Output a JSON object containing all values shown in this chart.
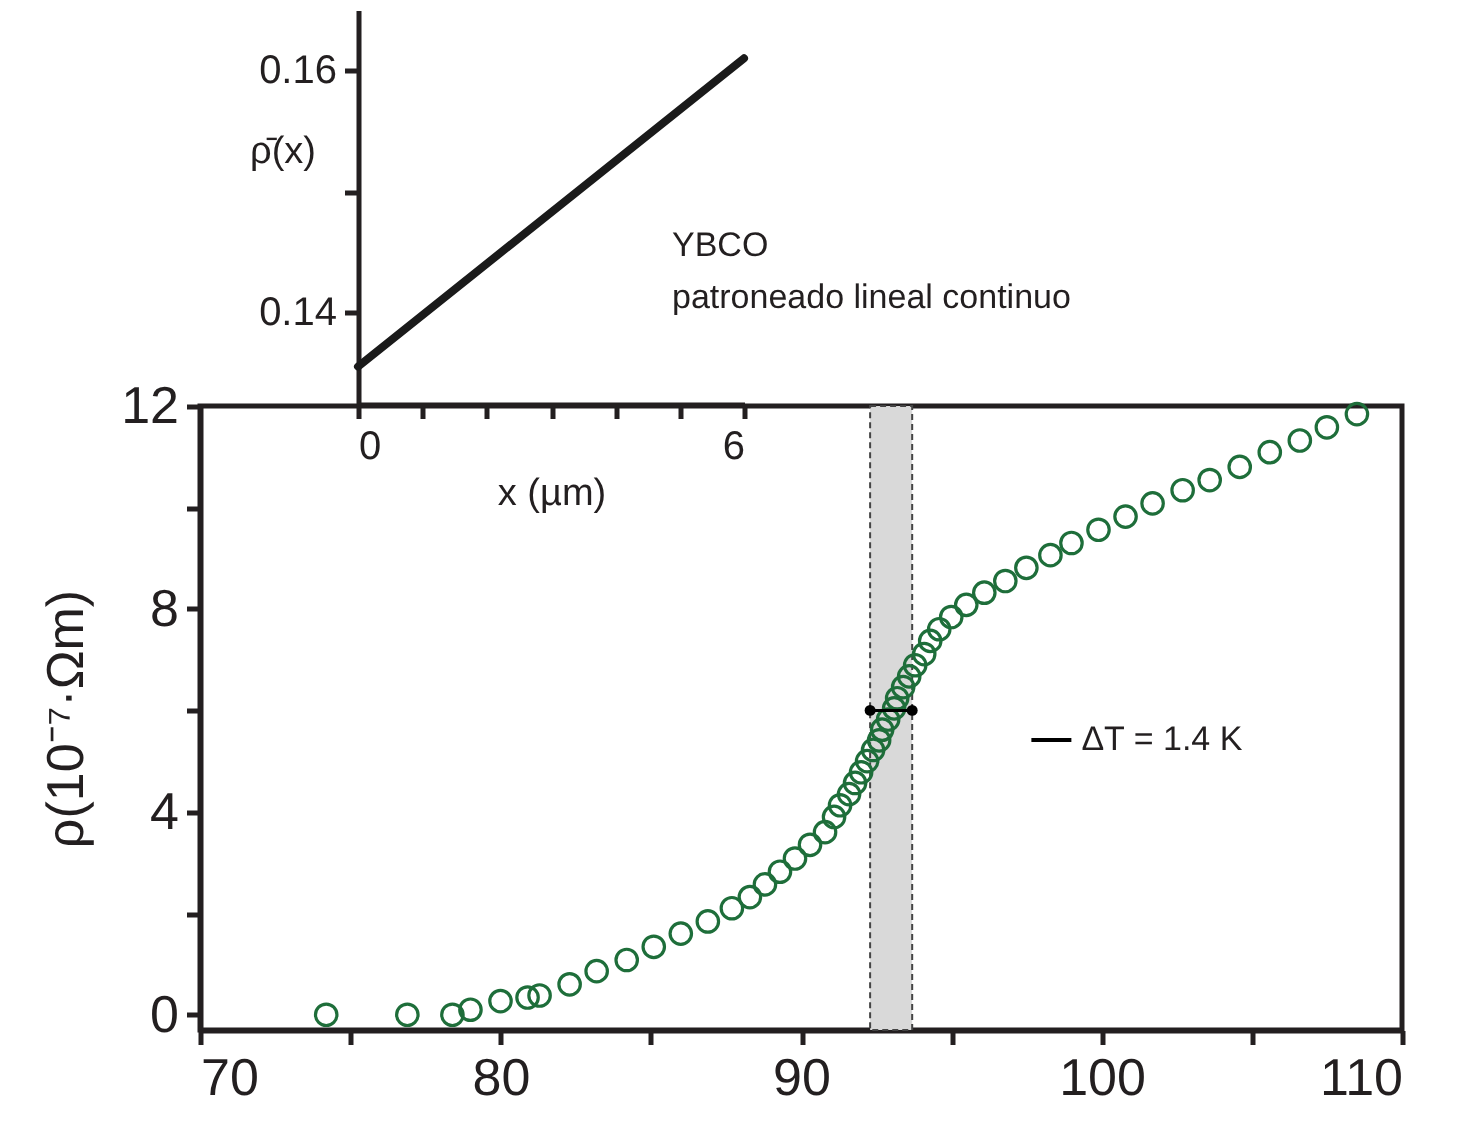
{
  "chart_data": [
    {
      "type": "scatter",
      "ylabel": "ρ(10⁻⁷·Ωm)",
      "xlim": [
        70,
        110
      ],
      "ylim": [
        -0.3,
        12
      ],
      "xticks": [
        70,
        {
          "value": 75,
          "label": null
        },
        80,
        {
          "value": 85,
          "label": null
        },
        90,
        {
          "value": 95,
          "label": null
        },
        100,
        {
          "value": 105,
          "label": null
        },
        110
      ],
      "yticks": [
        0,
        {
          "value": 2,
          "label": null
        },
        4,
        {
          "value": 6,
          "label": null
        },
        8,
        {
          "value": 10,
          "label": null
        },
        12
      ],
      "marker": "circle",
      "legend": "right",
      "grid": false,
      "bands": [
        {
          "axis": "x",
          "from": 92.3,
          "to": 93.7,
          "color": "#d9d9d9"
        }
      ],
      "series": [
        {
          "color": "#1e6e3a",
          "x": [
            74.2,
            76.9,
            78.4,
            79.0,
            80.0,
            80.9,
            81.3,
            82.3,
            83.2,
            84.2,
            85.1,
            86.0,
            86.9,
            87.7,
            88.3,
            88.8,
            89.3,
            89.8,
            90.3,
            90.8,
            91.1,
            91.3,
            91.6,
            91.8,
            92.0,
            92.2,
            92.4,
            92.6,
            92.7,
            92.9,
            93.1,
            93.2,
            93.4,
            93.6,
            93.8,
            94.1,
            94.3,
            94.6,
            95.0,
            95.5,
            96.1,
            96.8,
            97.5,
            98.3,
            99.0,
            99.9,
            100.8,
            101.7,
            102.7,
            103.6,
            104.6,
            105.6,
            106.6,
            107.5,
            108.5
          ],
          "values": [
            0.0,
            0.0,
            0.0,
            0.1,
            0.27,
            0.34,
            0.38,
            0.6,
            0.86,
            1.08,
            1.34,
            1.6,
            1.84,
            2.1,
            2.32,
            2.57,
            2.82,
            3.08,
            3.35,
            3.6,
            3.9,
            4.13,
            4.35,
            4.57,
            4.78,
            5.0,
            5.22,
            5.41,
            5.62,
            5.82,
            6.04,
            6.24,
            6.46,
            6.67,
            6.89,
            7.11,
            7.37,
            7.6,
            7.84,
            8.08,
            8.32,
            8.55,
            8.81,
            9.06,
            9.3,
            9.56,
            9.82,
            10.08,
            10.34,
            10.54,
            10.8,
            11.09,
            11.32,
            11.58,
            11.84
          ]
        },
        {
          "name": "ΔT = 1.4 K",
          "type": "line",
          "color": "#000000",
          "x": [
            92.3,
            93.7
          ],
          "values": [
            6,
            6
          ]
        }
      ]
    },
    {
      "type": "line",
      "xlabel": "x (µm)",
      "ylabel": "ρ̄(x)",
      "xlim": [
        0,
        6
      ],
      "ylim": [
        0.1324,
        0.165
      ],
      "xticks": [
        0,
        {
          "value": 1,
          "label": null
        },
        {
          "value": 2,
          "label": null
        },
        {
          "value": 3,
          "label": null
        },
        {
          "value": 4,
          "label": null
        },
        {
          "value": 5,
          "label": null
        },
        6
      ],
      "yticks": [
        0.14,
        {
          "value": 0.15,
          "label": null
        },
        0.16
      ],
      "annotations": [
        "YBCO",
        "patroneado lineal continuo"
      ],
      "series": [
        {
          "color": "#1a1a1a",
          "x": [
            0,
            6
          ],
          "values": [
            0.1355,
            0.161
          ]
        }
      ]
    }
  ]
}
